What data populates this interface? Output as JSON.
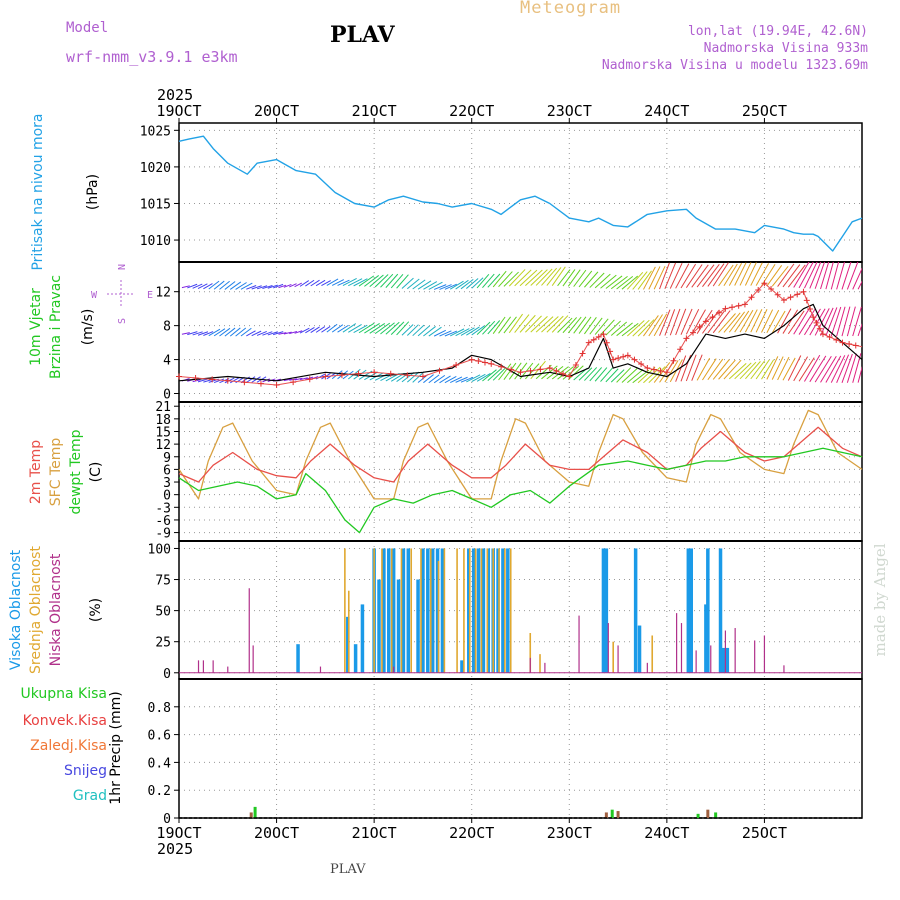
{
  "header": {
    "model_label": "Model",
    "model_name": "wrf-nmm_v3.9.1  e3km",
    "station_title": "PLAV",
    "meteogram_title": "Meteogram",
    "lonlat": "lon,lat (19.94E, 42.6N)",
    "elevation": "Nadmorska Visina 933m",
    "model_elevation": "Nadmorska Visina u modelu 1323.69m",
    "credit": "made by Angel",
    "footer_station": "PLAV"
  },
  "colors": {
    "pressure": "#22a2e6",
    "temp2m": "#e8504a",
    "sfc": "#d8a040",
    "dewpt": "#22c822",
    "wind_label": "#22c822",
    "high_cloud": "#1a9ae8",
    "mid_cloud": "#e0a830",
    "low_cloud": "#b0308a",
    "model": "#b060d0",
    "meteogram": "#e8c080"
  },
  "chart_data": [
    {
      "id": "pressure",
      "type": "line",
      "title": "Pritisak na nivou mora",
      "ylabel": "(hPa)",
      "ylim": [
        1007,
        1026
      ],
      "yticks": [
        1010,
        1015,
        1020,
        1025
      ],
      "x_days": [
        0,
        7
      ],
      "top_axis_year": "2025",
      "x_ticks": [
        "19OCT",
        "20OCT",
        "21OCT",
        "22OCT",
        "23OCT",
        "24OCT",
        "25OCT"
      ],
      "series": [
        {
          "name": "MSLP",
          "x": [
            0,
            0.1,
            0.25,
            0.35,
            0.5,
            0.7,
            0.8,
            1.0,
            1.2,
            1.4,
            1.6,
            1.8,
            2.0,
            2.15,
            2.3,
            2.5,
            2.65,
            2.8,
            3.0,
            3.2,
            3.3,
            3.5,
            3.65,
            3.8,
            4.0,
            4.2,
            4.3,
            4.45,
            4.6,
            4.8,
            5.0,
            5.2,
            5.3,
            5.5,
            5.7,
            5.9,
            6.0,
            6.2,
            6.3,
            6.4,
            6.5,
            6.55,
            6.7,
            6.8,
            6.9,
            7.0
          ],
          "values": [
            1023.5,
            1023.8,
            1024.2,
            1022.5,
            1020.5,
            1019.0,
            1020.5,
            1021.0,
            1019.5,
            1019.0,
            1016.5,
            1015.0,
            1014.5,
            1015.5,
            1016.0,
            1015.2,
            1015.0,
            1014.5,
            1015.0,
            1014.2,
            1013.5,
            1015.5,
            1016.0,
            1015.0,
            1013.0,
            1012.5,
            1013.0,
            1012.0,
            1011.8,
            1013.5,
            1014.0,
            1014.2,
            1013.0,
            1011.5,
            1011.5,
            1011.0,
            1012.0,
            1011.5,
            1011.0,
            1010.8,
            1010.8,
            1010.5,
            1008.5,
            1010.5,
            1012.5,
            1013.0
          ]
        }
      ]
    },
    {
      "id": "wind",
      "type": "line",
      "title": "10m Vjetar",
      "title2": "Brzina i Pravac",
      "ylabel": "(m/s)",
      "ylim": [
        -1,
        15.5
      ],
      "yticks": [
        0,
        4,
        8,
        12
      ],
      "compass": [
        "N",
        "W",
        "E",
        "S"
      ],
      "series": [
        {
          "name": "wind-speed",
          "x": [
            0,
            0.5,
            1.0,
            1.5,
            2.0,
            2.5,
            2.8,
            3.0,
            3.2,
            3.5,
            3.8,
            4.0,
            4.2,
            4.35,
            4.45,
            4.6,
            4.8,
            5.0,
            5.2,
            5.4,
            5.6,
            5.8,
            6.0,
            6.2,
            6.4,
            6.5,
            6.6,
            6.8,
            7.0
          ],
          "values": [
            1.5,
            2.0,
            1.5,
            2.5,
            2.0,
            2.5,
            3.0,
            4.5,
            4.0,
            2.0,
            2.5,
            2.0,
            3.0,
            6.5,
            3.0,
            3.5,
            2.5,
            2.0,
            3.5,
            7.0,
            6.5,
            7.0,
            6.5,
            8.0,
            10.0,
            10.5,
            8.0,
            6.0,
            4.0
          ]
        },
        {
          "name": "wind-gust",
          "x": [
            0,
            0.5,
            1.0,
            1.5,
            2.0,
            2.5,
            3.0,
            3.2,
            3.5,
            3.8,
            4.0,
            4.2,
            4.35,
            4.45,
            4.6,
            4.8,
            5.0,
            5.2,
            5.4,
            5.6,
            5.8,
            6.0,
            6.2,
            6.4,
            6.5,
            6.6,
            6.8,
            7.0
          ],
          "values": [
            2.0,
            1.5,
            1.0,
            2.0,
            2.5,
            2.0,
            4.0,
            3.5,
            2.5,
            3.0,
            2.0,
            6.0,
            7.0,
            4.0,
            4.5,
            3.0,
            2.5,
            6.5,
            8.5,
            10.0,
            10.5,
            13.0,
            11.0,
            12.0,
            9.0,
            7.0,
            6.0,
            5.5
          ]
        }
      ]
    },
    {
      "id": "temperature",
      "type": "line",
      "title": "2m Temp",
      "title2": "SFC Temp",
      "title3": "dewpt Temp",
      "ylabel": "(C)",
      "ylim": [
        -11,
        22
      ],
      "yticks": [
        -9,
        -6,
        -3,
        0,
        3,
        6,
        9,
        12,
        15,
        18,
        21
      ],
      "series": [
        {
          "name": "2m Temp",
          "x": [
            0,
            0.2,
            0.35,
            0.55,
            0.8,
            1.0,
            1.2,
            1.35,
            1.55,
            1.8,
            2.0,
            2.2,
            2.35,
            2.55,
            2.8,
            3.0,
            3.2,
            3.35,
            3.55,
            3.8,
            4.0,
            4.2,
            4.35,
            4.55,
            4.8,
            5.0,
            5.2,
            5.35,
            5.55,
            5.8,
            6.0,
            6.2,
            6.35,
            6.55,
            6.8,
            7.0
          ],
          "values": [
            5,
            3,
            7,
            10,
            6,
            4.5,
            4,
            8,
            12,
            7,
            4,
            3,
            8,
            12,
            7,
            4,
            4,
            7,
            12,
            7,
            6,
            6,
            9,
            13,
            10,
            6,
            7,
            11,
            15,
            10,
            8,
            9,
            12,
            16,
            11,
            9
          ]
        },
        {
          "name": "SFC Temp",
          "x": [
            0,
            0.2,
            0.3,
            0.45,
            0.55,
            0.75,
            1.0,
            1.2,
            1.3,
            1.45,
            1.55,
            1.75,
            2.0,
            2.2,
            2.3,
            2.45,
            2.55,
            2.75,
            3.0,
            3.2,
            3.3,
            3.45,
            3.55,
            3.75,
            4.0,
            4.2,
            4.3,
            4.45,
            4.55,
            4.75,
            5.0,
            5.2,
            5.3,
            5.45,
            5.55,
            5.75,
            6.0,
            6.2,
            6.3,
            6.45,
            6.55,
            6.75,
            7.0
          ],
          "values": [
            6,
            -1,
            8,
            16,
            17,
            8,
            1,
            0,
            8,
            16,
            17,
            8,
            -1,
            -1,
            8,
            16,
            17,
            8,
            -1,
            -1,
            8,
            18,
            17,
            8,
            3,
            2,
            10,
            19,
            18,
            10,
            4,
            3,
            12,
            19,
            18,
            10,
            6,
            5,
            12,
            20,
            19,
            10,
            6
          ]
        },
        {
          "name": "dewpt Temp",
          "x": [
            0,
            0.2,
            0.4,
            0.6,
            0.8,
            1.0,
            1.2,
            1.3,
            1.5,
            1.7,
            1.85,
            2.0,
            2.2,
            2.4,
            2.6,
            2.8,
            3.0,
            3.2,
            3.4,
            3.6,
            3.8,
            4.0,
            4.3,
            4.6,
            4.8,
            5.0,
            5.2,
            5.4,
            5.6,
            5.8,
            6.0,
            6.2,
            6.4,
            6.6,
            6.8,
            7.0
          ],
          "values": [
            4,
            1,
            2,
            3,
            2,
            -1,
            0,
            5,
            1,
            -6,
            -9,
            -3,
            -1,
            -2,
            0,
            1,
            -1,
            -3,
            0,
            1,
            -2,
            2,
            7,
            8,
            7,
            6,
            7,
            8,
            8,
            9,
            9,
            9,
            10,
            11,
            10,
            9
          ]
        }
      ]
    },
    {
      "id": "clouds",
      "type": "bar",
      "title": "Visoka Oblacnost",
      "title2": "Srednja Oblacnost",
      "title3": "Niska Oblacnost",
      "ylabel": "(%)",
      "ylim": [
        -5,
        106
      ],
      "yticks": [
        0,
        25,
        50,
        75,
        100
      ],
      "series": [
        {
          "name": "high",
          "x": [
            1.22,
            1.73,
            1.81,
            1.88,
            2.0,
            2.05,
            2.1,
            2.15,
            2.2,
            2.25,
            2.3,
            2.35,
            2.45,
            2.5,
            2.55,
            2.6,
            2.65,
            2.7,
            2.9,
            2.97,
            3.02,
            3.07,
            3.12,
            3.17,
            3.22,
            3.27,
            3.32,
            3.37,
            4.35,
            4.38,
            4.68,
            4.72,
            5.22,
            5.25,
            5.4,
            5.42,
            5.55,
            5.58,
            5.62
          ],
          "values": [
            23,
            45,
            23,
            55,
            100,
            75,
            100,
            100,
            100,
            75,
            100,
            100,
            75,
            100,
            100,
            100,
            100,
            100,
            10,
            100,
            100,
            100,
            100,
            100,
            100,
            100,
            100,
            100,
            100,
            100,
            100,
            38,
            100,
            100,
            55,
            100,
            100,
            20,
            20
          ]
        },
        {
          "name": "mid",
          "x": [
            1.7,
            1.74,
            2.0,
            2.08,
            2.18,
            2.28,
            2.38,
            2.48,
            2.58,
            2.66,
            2.72,
            2.85,
            2.92,
            2.98,
            3.04,
            3.1,
            3.16,
            3.22,
            3.28,
            3.34,
            3.4,
            3.6,
            3.7,
            4.45,
            4.85
          ],
          "values": [
            100,
            66,
            100,
            100,
            100,
            100,
            100,
            100,
            100,
            90,
            100,
            100,
            100,
            100,
            100,
            100,
            100,
            100,
            100,
            100,
            100,
            32,
            15,
            25,
            30
          ]
        },
        {
          "name": "low",
          "x": [
            0.2,
            0.25,
            0.35,
            0.5,
            0.72,
            0.76,
            1.45,
            2.2,
            3.6,
            3.75,
            4.1,
            4.4,
            4.5,
            4.8,
            5.1,
            5.15,
            5.3,
            5.45,
            5.6,
            5.7,
            5.9,
            6.0,
            6.2
          ],
          "values": [
            10,
            10,
            10,
            5,
            68,
            22,
            5,
            5,
            12,
            8,
            46,
            40,
            22,
            8,
            48,
            40,
            18,
            22,
            34,
            36,
            26,
            30,
            6
          ]
        }
      ]
    },
    {
      "id": "precip",
      "type": "bar",
      "title": "Ukupna Kisa",
      "title2": "Konvek.Kisa",
      "title3": "Zaledj.Kisa",
      "title4": "Snijeg",
      "title5": "Grad",
      "ylabel": "1hr Precip (mm)",
      "ylim": [
        0,
        1.0
      ],
      "yticks": [
        0,
        0.2,
        0.4,
        0.6,
        0.8
      ],
      "bottom_axis_year": "2025",
      "series": [
        {
          "name": "total",
          "x": [
            0.74,
            0.78,
            4.38,
            4.44,
            4.5,
            5.32,
            5.42,
            5.5
          ],
          "values": [
            0.04,
            0.08,
            0.04,
            0.06,
            0.05,
            0.03,
            0.06,
            0.04
          ]
        }
      ]
    }
  ]
}
